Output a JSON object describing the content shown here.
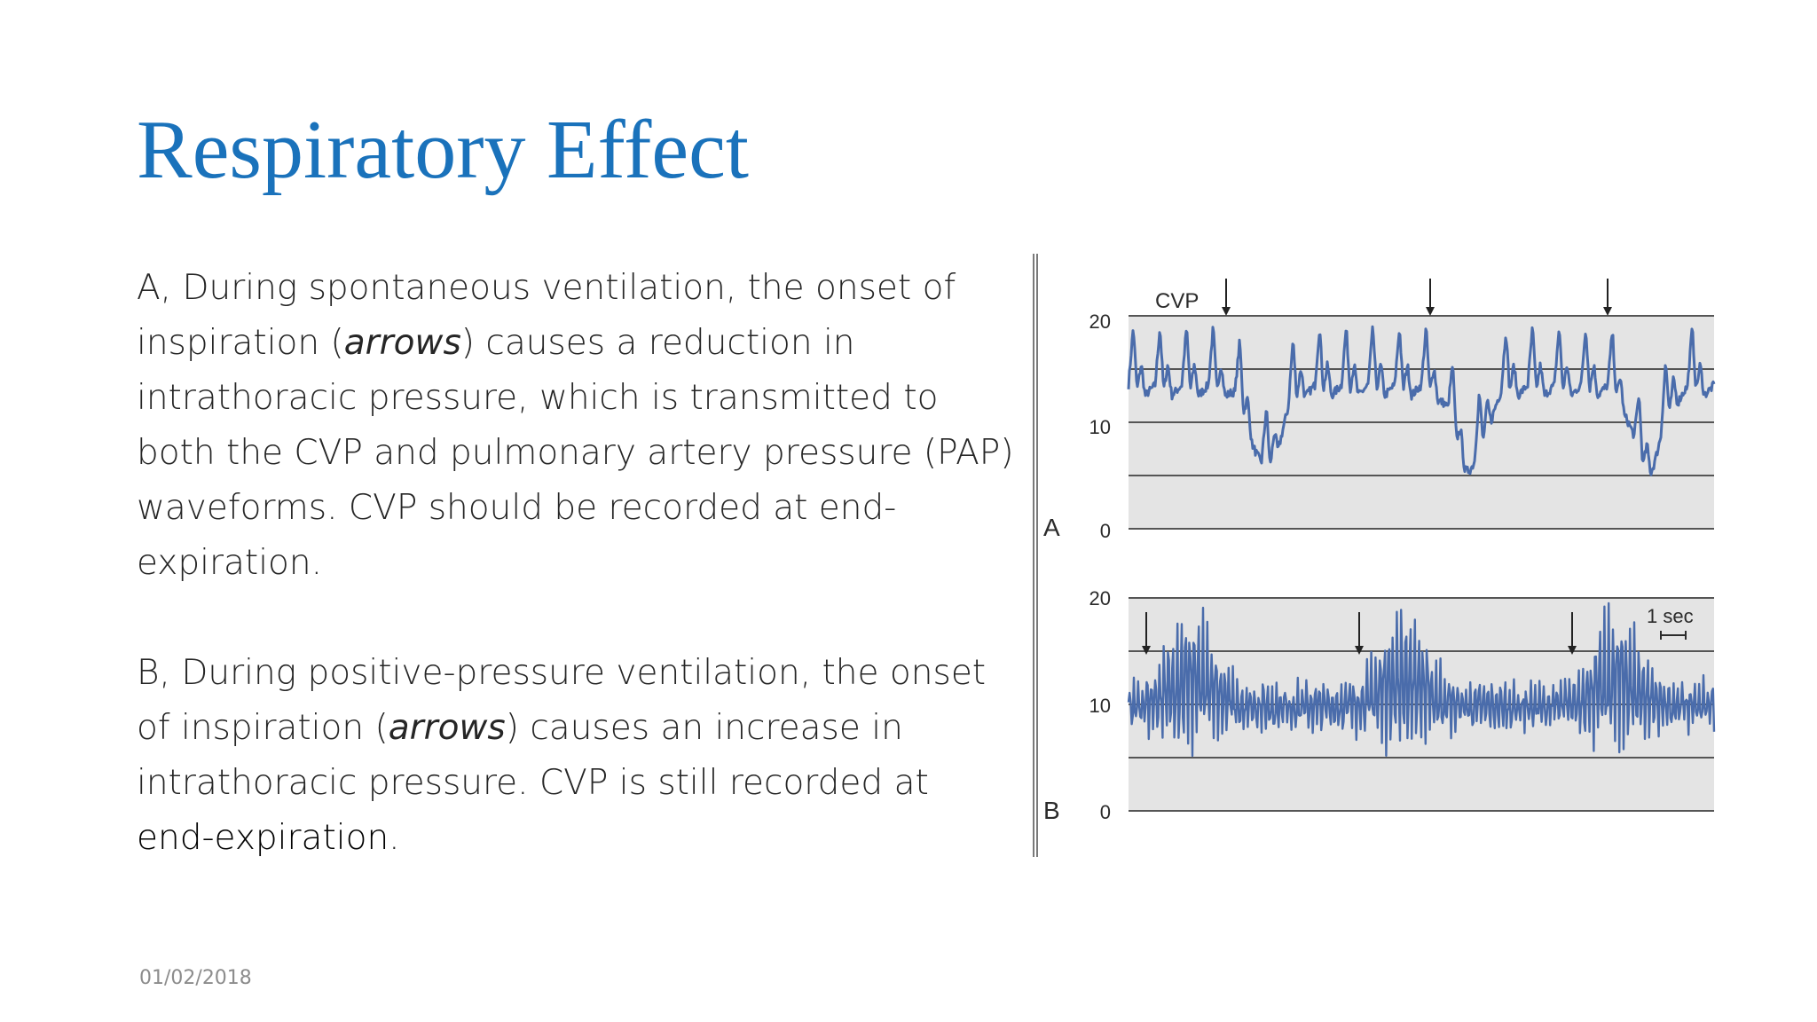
{
  "slide": {
    "title": "Respiratory Effect",
    "paragraph_a": {
      "part1": "A, During spontaneous ventilation, the onset of inspiration (",
      "italic": "arrows",
      "part2": ") causes a reduction in intrathoracic pressure, which is transmitted to both the CVP and pulmonary artery pressure (PAP) waveforms. CVP should be recorded at end-expiration."
    },
    "paragraph_b": {
      "part1": "B, During positive-pressure ventilation, the onset of inspiration (",
      "italic": "arrows",
      "part2": ") causes an increase in intrathoracic pressure. CVP is still recorded at ",
      "emphasis": "end-expiration",
      "part3": "."
    },
    "date": "01/02/2018"
  },
  "figure": {
    "panel_a": {
      "letter": "A",
      "trace_label": "CVP",
      "y_ticks": [
        "20",
        "10",
        "0"
      ],
      "ylim": [
        0,
        20
      ],
      "arrow_times": [
        1.1,
        3.4,
        5.4
      ],
      "trace_color": "#4a6cab",
      "panel_color": "#e4e4e4"
    },
    "panel_b": {
      "letter": "B",
      "y_ticks": [
        "20",
        "10",
        "0"
      ],
      "ylim": [
        0,
        20
      ],
      "arrow_times": [
        0.2,
        2.6,
        5.0
      ],
      "scale_label": "1 sec",
      "trace_color": "#4a6cab",
      "panel_color": "#e4e4e4"
    }
  }
}
